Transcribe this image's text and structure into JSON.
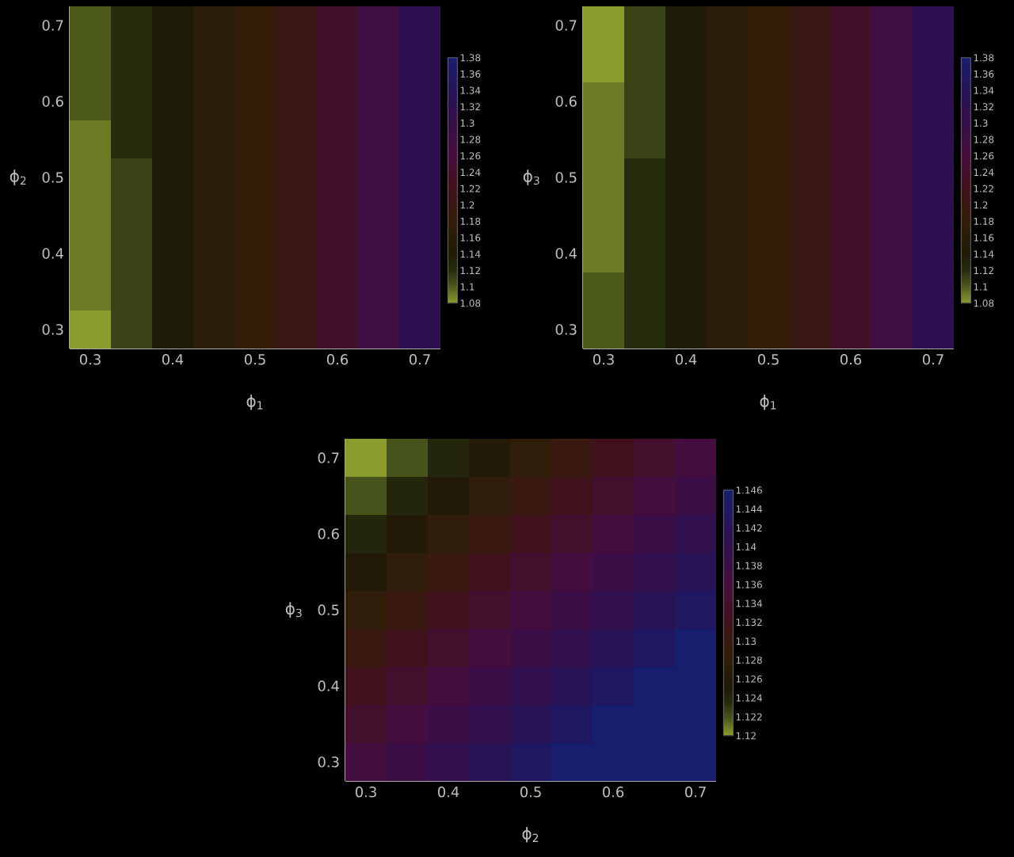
{
  "chart_data": [
    {
      "type": "heatmap",
      "xlabel": "ϕ$_{1}$",
      "ylabel": "ϕ$_{2}$",
      "categories": [
        "0.3",
        null,
        "0.4",
        null,
        "0.5",
        null,
        "0.6",
        null,
        "0.7"
      ],
      "y_categories": [
        "0.7",
        null,
        "0.6",
        null,
        "0.5",
        null,
        "0.4",
        null,
        "0.3"
      ],
      "cells": [
        [
          1.1,
          1.12,
          1.14,
          1.16,
          1.18,
          1.2,
          1.24,
          1.28,
          1.32
        ],
        [
          1.1,
          1.12,
          1.14,
          1.16,
          1.18,
          1.2,
          1.24,
          1.28,
          1.32
        ],
        [
          1.1,
          1.12,
          1.14,
          1.16,
          1.18,
          1.2,
          1.24,
          1.28,
          1.32
        ],
        [
          1.09,
          1.12,
          1.14,
          1.16,
          1.18,
          1.2,
          1.24,
          1.28,
          1.32
        ],
        [
          1.09,
          1.11,
          1.14,
          1.16,
          1.18,
          1.2,
          1.24,
          1.28,
          1.32
        ],
        [
          1.09,
          1.11,
          1.14,
          1.16,
          1.18,
          1.2,
          1.24,
          1.28,
          1.32
        ],
        [
          1.09,
          1.11,
          1.14,
          1.16,
          1.18,
          1.2,
          1.24,
          1.28,
          1.32
        ],
        [
          1.09,
          1.11,
          1.14,
          1.16,
          1.18,
          1.2,
          1.24,
          1.28,
          1.32
        ],
        [
          1.08,
          1.11,
          1.14,
          1.16,
          1.18,
          1.2,
          1.24,
          1.28,
          1.32
        ]
      ],
      "clim": [
        1.08,
        1.38
      ],
      "cticks": [
        1.08,
        1.1,
        1.12,
        1.14,
        1.16,
        1.18,
        1.2,
        1.22,
        1.24,
        1.26,
        1.28,
        1.3,
        1.32,
        1.34,
        1.36,
        1.38
      ]
    },
    {
      "type": "heatmap",
      "xlabel": "ϕ$_{1}$",
      "ylabel": "ϕ$_{3}$",
      "categories": [
        "0.3",
        null,
        "0.4",
        null,
        "0.5",
        null,
        "0.6",
        null,
        "0.7"
      ],
      "y_categories": [
        "0.7",
        null,
        "0.6",
        null,
        "0.5",
        null,
        "0.4",
        null,
        "0.3"
      ],
      "cells": [
        [
          1.08,
          1.11,
          1.14,
          1.16,
          1.18,
          1.2,
          1.24,
          1.28,
          1.32
        ],
        [
          1.08,
          1.11,
          1.14,
          1.16,
          1.18,
          1.2,
          1.24,
          1.28,
          1.32
        ],
        [
          1.09,
          1.11,
          1.14,
          1.16,
          1.18,
          1.2,
          1.24,
          1.28,
          1.32
        ],
        [
          1.09,
          1.11,
          1.14,
          1.16,
          1.18,
          1.2,
          1.24,
          1.28,
          1.32
        ],
        [
          1.09,
          1.12,
          1.14,
          1.16,
          1.18,
          1.2,
          1.24,
          1.28,
          1.32
        ],
        [
          1.09,
          1.12,
          1.14,
          1.16,
          1.18,
          1.2,
          1.24,
          1.28,
          1.32
        ],
        [
          1.09,
          1.12,
          1.14,
          1.16,
          1.18,
          1.2,
          1.24,
          1.28,
          1.32
        ],
        [
          1.1,
          1.12,
          1.14,
          1.16,
          1.18,
          1.2,
          1.24,
          1.28,
          1.32
        ],
        [
          1.1,
          1.12,
          1.14,
          1.16,
          1.18,
          1.2,
          1.24,
          1.28,
          1.32
        ]
      ],
      "clim": [
        1.08,
        1.38
      ],
      "cticks": [
        1.08,
        1.1,
        1.12,
        1.14,
        1.16,
        1.18,
        1.2,
        1.22,
        1.24,
        1.26,
        1.28,
        1.3,
        1.32,
        1.34,
        1.36,
        1.38
      ]
    },
    {
      "type": "heatmap",
      "xlabel": "ϕ$_{2}$",
      "ylabel": "ϕ$_{3}$",
      "categories": [
        "0.3",
        null,
        "0.4",
        null,
        "0.5",
        null,
        "0.6",
        null,
        "0.7"
      ],
      "y_categories": [
        "0.7",
        null,
        "0.6",
        null,
        "0.5",
        null,
        "0.4",
        null,
        "0.3"
      ],
      "cells": [
        [
          1.12,
          1.122,
          1.124,
          1.126,
          1.128,
          1.13,
          1.132,
          1.134,
          1.136
        ],
        [
          1.122,
          1.124,
          1.126,
          1.128,
          1.13,
          1.132,
          1.134,
          1.136,
          1.138
        ],
        [
          1.124,
          1.126,
          1.128,
          1.13,
          1.132,
          1.134,
          1.136,
          1.138,
          1.14
        ],
        [
          1.126,
          1.128,
          1.13,
          1.132,
          1.134,
          1.136,
          1.138,
          1.14,
          1.142
        ],
        [
          1.128,
          1.13,
          1.132,
          1.134,
          1.136,
          1.138,
          1.14,
          1.142,
          1.144
        ],
        [
          1.13,
          1.132,
          1.134,
          1.136,
          1.138,
          1.14,
          1.142,
          1.144,
          1.146
        ],
        [
          1.132,
          1.134,
          1.136,
          1.138,
          1.14,
          1.142,
          1.144,
          1.146,
          1.146
        ],
        [
          1.134,
          1.136,
          1.138,
          1.14,
          1.142,
          1.144,
          1.146,
          1.146,
          1.146
        ],
        [
          1.136,
          1.138,
          1.14,
          1.142,
          1.144,
          1.146,
          1.146,
          1.146,
          1.146
        ]
      ],
      "clim": [
        1.12,
        1.146
      ],
      "cticks": [
        1.12,
        1.122,
        1.124,
        1.126,
        1.128,
        1.13,
        1.132,
        1.134,
        1.136,
        1.138,
        1.14,
        1.142,
        1.144,
        1.146
      ]
    }
  ]
}
